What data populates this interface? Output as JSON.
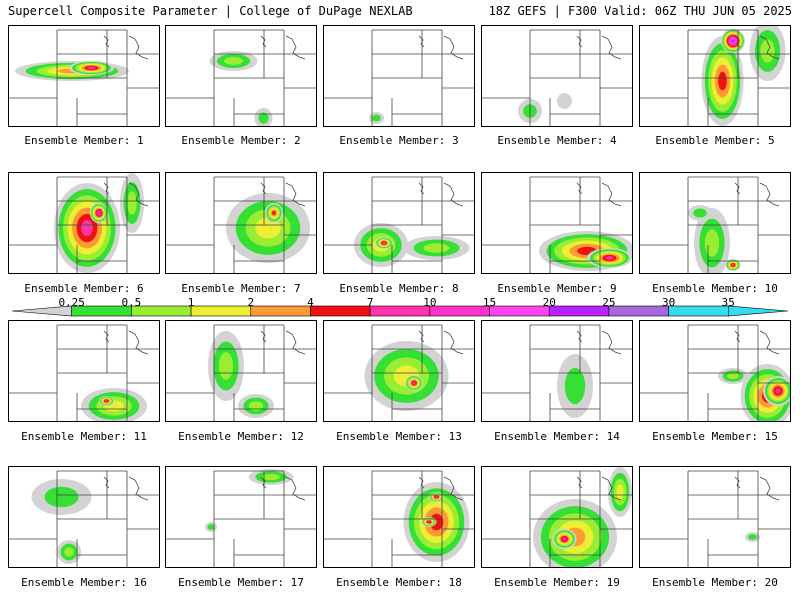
{
  "header": {
    "left_title": "Supercell Composite Parameter | College of DuPage NEXLAB",
    "right_title": "18Z GEFS | F300 Valid: 06Z THU JUN 05 2025"
  },
  "colorbar": {
    "labels": [
      "0.25",
      "0.5",
      "1",
      "2",
      "4",
      "7",
      "10",
      "15",
      "20",
      "25",
      "30",
      "35"
    ],
    "colors": [
      "#d3d3d3",
      "#33e033",
      "#99ee33",
      "#eeee33",
      "#ff9933",
      "#ee1111",
      "#ff33aa",
      "#ff33cc",
      "#ff44ee",
      "#bb22ff",
      "#aa66dd",
      "#33ddee",
      "#33ddee"
    ]
  },
  "panels": [
    {
      "label": "Ensemble Member: 1",
      "blobs": [
        [
          0.42,
          0.45,
          0.38,
          0.1,
          4
        ],
        [
          0.55,
          0.42,
          0.15,
          0.07,
          6
        ]
      ]
    },
    {
      "label": "Ensemble Member: 2",
      "blobs": [
        [
          0.45,
          0.35,
          0.16,
          0.1,
          2
        ],
        [
          0.65,
          0.92,
          0.06,
          0.1,
          1
        ]
      ]
    },
    {
      "label": "Ensemble Member: 3",
      "blobs": [
        [
          0.35,
          0.92,
          0.05,
          0.06,
          1
        ]
      ]
    },
    {
      "label": "Ensemble Member: 4",
      "blobs": [
        [
          0.32,
          0.85,
          0.08,
          0.12,
          1
        ],
        [
          0.55,
          0.75,
          0.05,
          0.08,
          0
        ]
      ]
    },
    {
      "label": "Ensemble Member: 5",
      "blobs": [
        [
          0.55,
          0.55,
          0.14,
          0.45,
          5
        ],
        [
          0.62,
          0.15,
          0.08,
          0.12,
          9
        ],
        [
          0.85,
          0.25,
          0.12,
          0.3,
          2
        ]
      ]
    },
    {
      "label": "Ensemble Member: 6",
      "blobs": [
        [
          0.52,
          0.55,
          0.22,
          0.45,
          6
        ],
        [
          0.6,
          0.4,
          0.06,
          0.1,
          7
        ],
        [
          0.82,
          0.3,
          0.08,
          0.3,
          2
        ]
      ]
    },
    {
      "label": "Ensemble Member: 7",
      "blobs": [
        [
          0.68,
          0.55,
          0.28,
          0.35,
          3
        ],
        [
          0.72,
          0.4,
          0.06,
          0.1,
          5
        ]
      ]
    },
    {
      "label": "Ensemble Member: 8",
      "blobs": [
        [
          0.38,
          0.72,
          0.18,
          0.22,
          3
        ],
        [
          0.75,
          0.75,
          0.22,
          0.12,
          2
        ],
        [
          0.4,
          0.7,
          0.06,
          0.06,
          6
        ]
      ]
    },
    {
      "label": "Ensemble Member: 9",
      "blobs": [
        [
          0.7,
          0.78,
          0.32,
          0.2,
          5
        ],
        [
          0.85,
          0.85,
          0.15,
          0.1,
          6
        ]
      ]
    },
    {
      "label": "Ensemble Member: 10",
      "blobs": [
        [
          0.48,
          0.7,
          0.12,
          0.35,
          2
        ],
        [
          0.62,
          0.92,
          0.05,
          0.06,
          6
        ],
        [
          0.4,
          0.4,
          0.08,
          0.08,
          1
        ]
      ]
    },
    {
      "label": "Ensemble Member: 11",
      "blobs": [
        [
          0.7,
          0.85,
          0.22,
          0.18,
          3
        ],
        [
          0.65,
          0.8,
          0.05,
          0.05,
          6
        ]
      ]
    },
    {
      "label": "Ensemble Member: 12",
      "blobs": [
        [
          0.4,
          0.45,
          0.12,
          0.35,
          2
        ],
        [
          0.6,
          0.85,
          0.12,
          0.12,
          2
        ]
      ]
    },
    {
      "label": "Ensemble Member: 13",
      "blobs": [
        [
          0.55,
          0.55,
          0.28,
          0.35,
          3
        ],
        [
          0.6,
          0.62,
          0.06,
          0.08,
          6
        ]
      ]
    },
    {
      "label": "Ensemble Member: 14",
      "blobs": [
        [
          0.62,
          0.65,
          0.12,
          0.32,
          1
        ]
      ]
    },
    {
      "label": "Ensemble Member: 15",
      "blobs": [
        [
          0.85,
          0.75,
          0.18,
          0.32,
          5
        ],
        [
          0.92,
          0.7,
          0.1,
          0.15,
          6
        ],
        [
          0.62,
          0.55,
          0.1,
          0.08,
          2
        ]
      ]
    },
    {
      "label": "Ensemble Member: 16",
      "blobs": [
        [
          0.35,
          0.3,
          0.2,
          0.18,
          1
        ],
        [
          0.4,
          0.85,
          0.08,
          0.12,
          2
        ]
      ]
    },
    {
      "label": "Ensemble Member: 17",
      "blobs": [
        [
          0.7,
          0.1,
          0.15,
          0.08,
          2
        ],
        [
          0.3,
          0.6,
          0.04,
          0.05,
          1
        ]
      ]
    },
    {
      "label": "Ensemble Member: 18",
      "blobs": [
        [
          0.75,
          0.55,
          0.22,
          0.4,
          5
        ],
        [
          0.75,
          0.3,
          0.05,
          0.05,
          6
        ],
        [
          0.7,
          0.55,
          0.05,
          0.05,
          6
        ]
      ]
    },
    {
      "label": "Ensemble Member: 19",
      "blobs": [
        [
          0.62,
          0.7,
          0.28,
          0.38,
          4
        ],
        [
          0.55,
          0.72,
          0.08,
          0.1,
          6
        ],
        [
          0.92,
          0.25,
          0.08,
          0.25,
          3
        ]
      ]
    },
    {
      "label": "Ensemble Member: 20",
      "blobs": [
        [
          0.75,
          0.7,
          0.05,
          0.05,
          1
        ]
      ]
    }
  ]
}
